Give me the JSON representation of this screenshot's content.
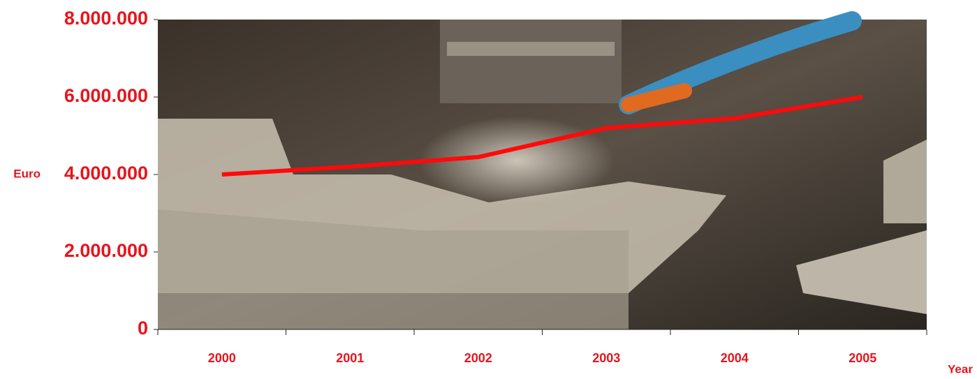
{
  "chart_data": {
    "type": "line",
    "categories": [
      "2000",
      "2001",
      "2002",
      "2003",
      "2004",
      "2005"
    ],
    "series": [
      {
        "color": "#ff0a0a",
        "values": [
          4000000,
          4200000,
          4450000,
          5200000,
          5450000,
          6000000
        ]
      }
    ],
    "ylim": [
      0,
      8000000
    ],
    "yticks": [
      0,
      {
        "value": 2000000,
        "label": "2.000.000"
      },
      {
        "value": 4000000,
        "label": "4.000.000"
      },
      {
        "value": 6000000,
        "label": "6.000.000"
      },
      {
        "value": 8000000,
        "label": "8.000.000"
      }
    ],
    "ylabel": "Euro",
    "xlabel": "Year"
  }
}
